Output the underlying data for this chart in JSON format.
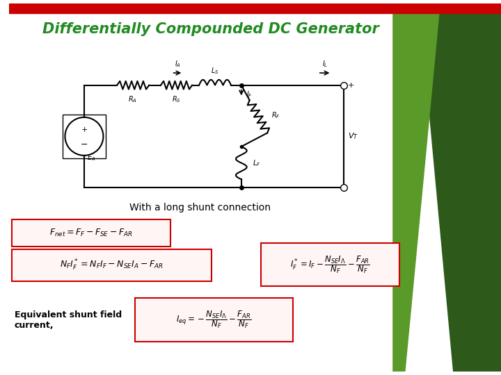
{
  "title": "Differentially Compounded DC Generator",
  "title_color": "#228B22",
  "subtitle": "With a long shunt connection",
  "bg_color": "#ffffff",
  "top_bar_color": "#cc0000",
  "eq1": "$F_{net} = F_F - F_{SE} - F_{AR}$",
  "eq2": "$N_F I_F^* = N_F I_F - N_{SE} I_A - F_{AR}$",
  "eq3": "$I_F^* = I_F - \\dfrac{N_{SE} I_\\Lambda}{N_F} - \\dfrac{F_{AR}}{N_F}$",
  "eq4": "$I_{eq} = -\\dfrac{N_{SE} I_\\Lambda}{N_F} - \\dfrac{F_{AR}}{N_F}$",
  "eq_label": "Equivalent shunt field\ncurrent,",
  "box_color": "#cc0000"
}
